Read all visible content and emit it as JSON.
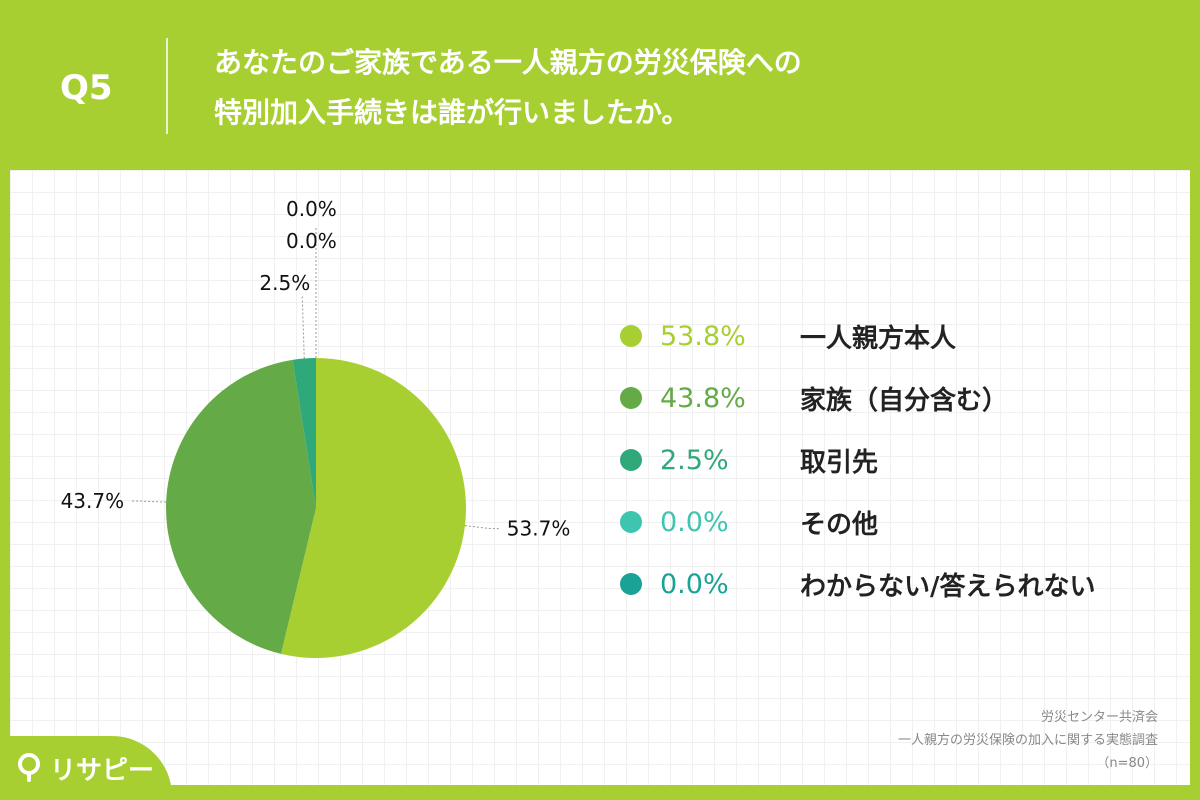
{
  "header": {
    "question_number": "Q5",
    "question_line1": "あなたのご家族である一人親方の労災保険への",
    "question_line2": "特別加入手続きは誰が行いましたか。"
  },
  "chart_data": {
    "type": "pie",
    "slices": [
      {
        "label": "一人親方本人",
        "value": 53.8,
        "pie_label": "53.7%",
        "legend_value": "53.8%",
        "color": "#a8cf32"
      },
      {
        "label": "家族（自分含む）",
        "value": 43.8,
        "pie_label": "43.7%",
        "legend_value": "43.8%",
        "color": "#64aa46"
      },
      {
        "label": "取引先",
        "value": 2.5,
        "pie_label": "2.5%",
        "legend_value": "2.5%",
        "color": "#2fa979"
      },
      {
        "label": "その他",
        "value": 0.0,
        "pie_label": "0.0%",
        "legend_value": "0.0%",
        "color": "#3ec5b0"
      },
      {
        "label": "わからない/答えられない",
        "value": 0.0,
        "pie_label": "0.0%",
        "legend_value": "0.0%",
        "color": "#19a296"
      }
    ]
  },
  "source": {
    "line1": "労災センター共済会",
    "line2": "一人親方の労災保険の加入に関する実態調査",
    "line3": "（n=80）"
  },
  "logo": {
    "text": "リサピー"
  }
}
